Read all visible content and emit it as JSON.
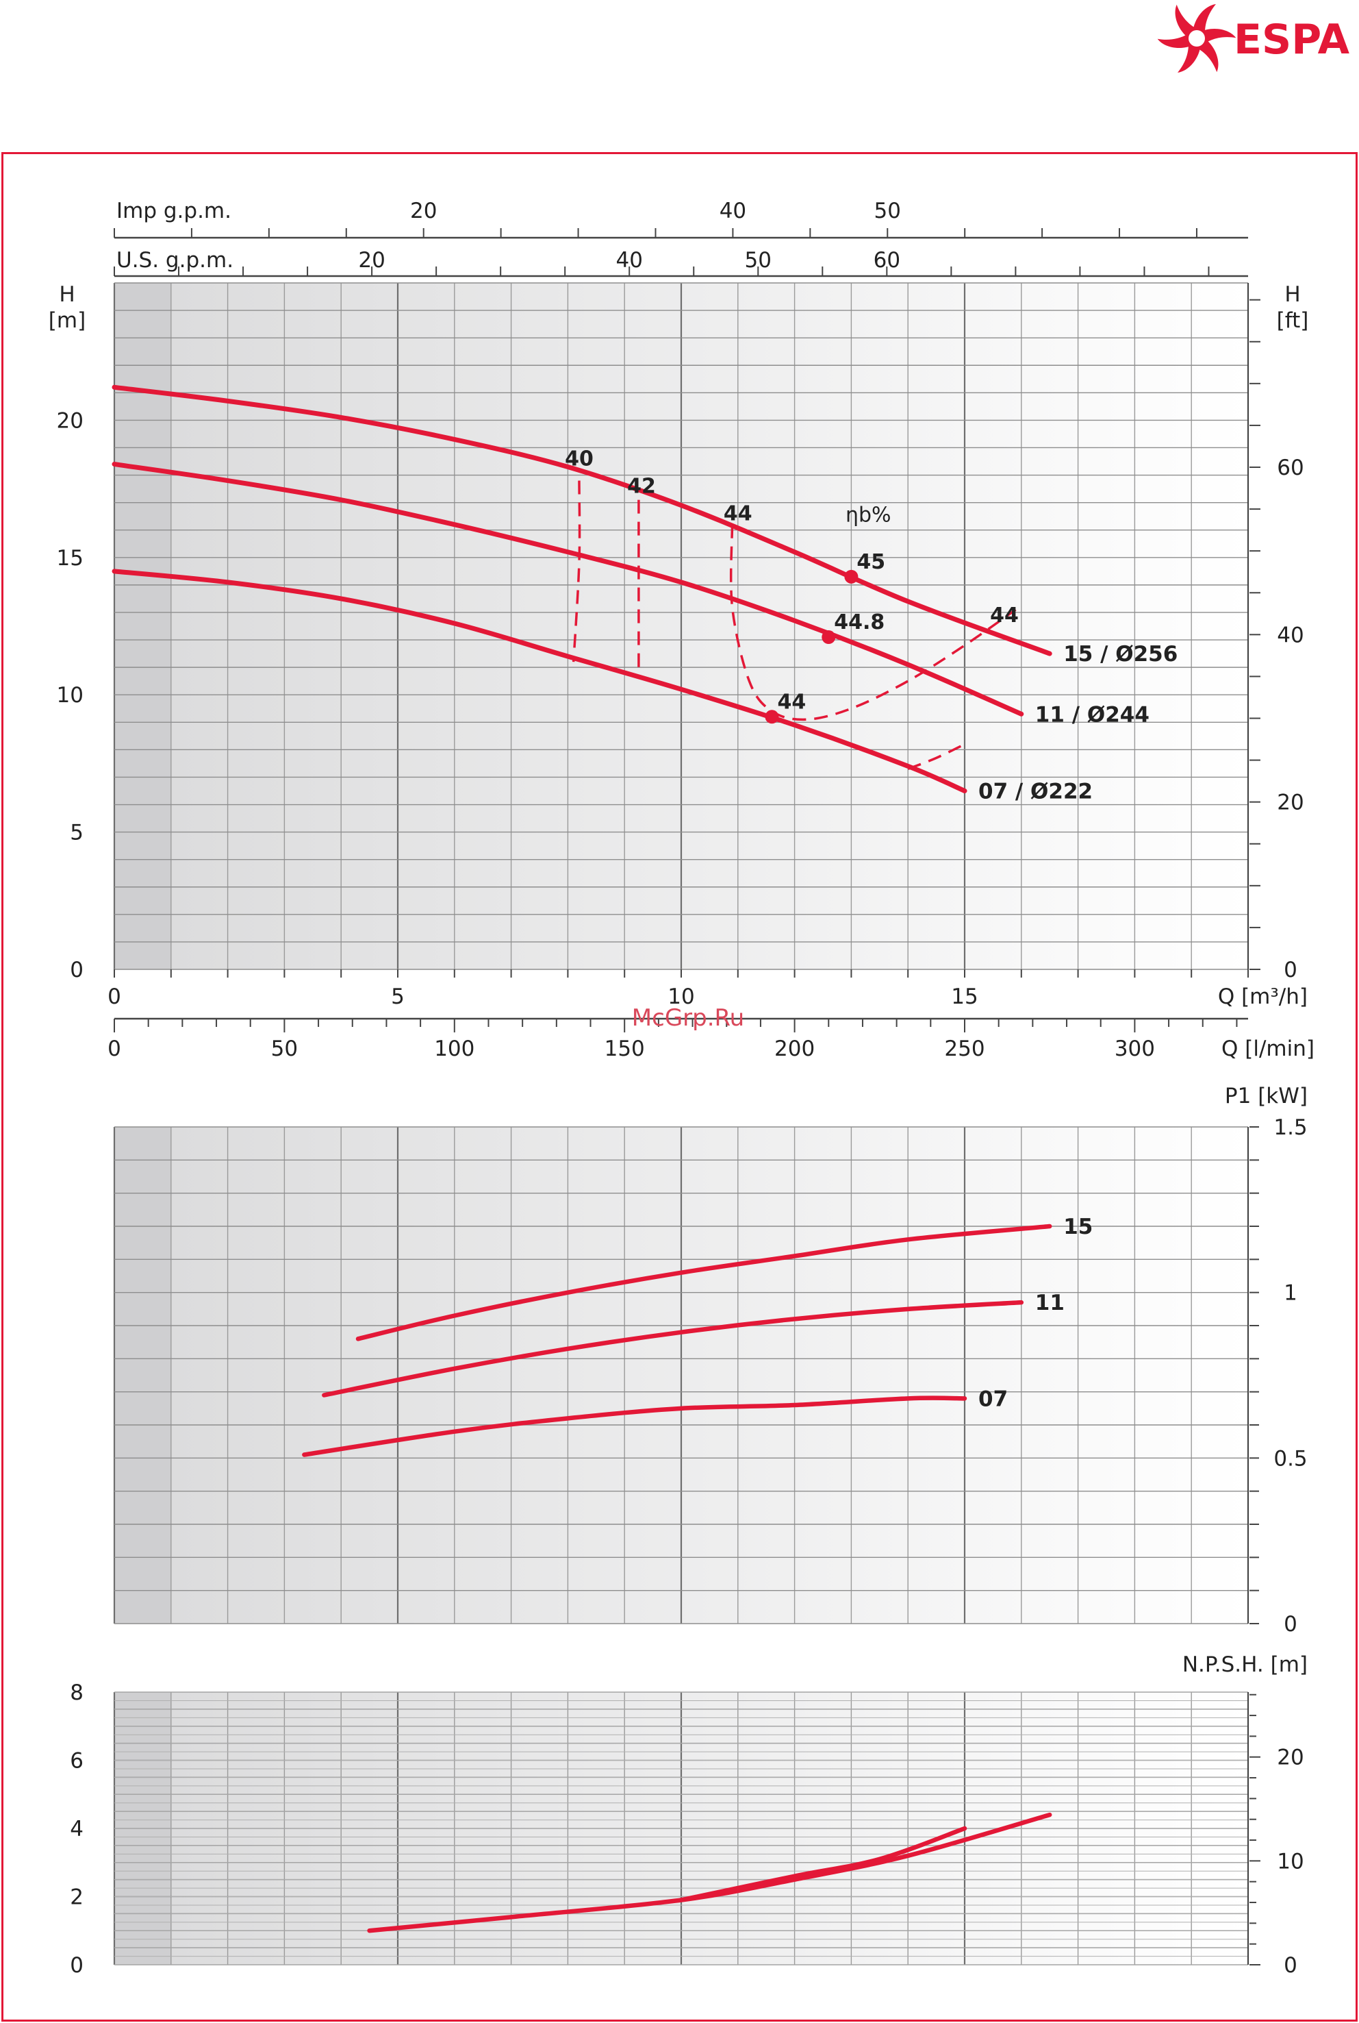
{
  "brand": {
    "name": "ESPA",
    "color": "#e31837"
  },
  "watermark": "McGrp.Ru",
  "colors": {
    "curve": "#e31837",
    "frame": "#e31837",
    "grid": "#8a8a8a",
    "axis": "#444444",
    "text": "#222222"
  },
  "chart_data": [
    {
      "type": "line",
      "panel": "head",
      "x_unit": "Q [m³/h]",
      "xlim": [
        0,
        20
      ],
      "xticks": [
        0,
        5,
        10,
        15
      ],
      "x_lmin_ticks": [
        0,
        50,
        100,
        150,
        200,
        250,
        300
      ],
      "x_lmin_label": "Q [l/min]",
      "x_usgpm_label": "U.S. g.p.m.",
      "x_usgpm_ticks": [
        20,
        40,
        50,
        60
      ],
      "x_impgpm_label": "Imp g.p.m.",
      "x_impgpm_ticks": [
        20,
        40,
        50
      ],
      "ylabel_left": [
        "H",
        "[m]"
      ],
      "ylim": [
        0,
        25
      ],
      "yticks": [
        0,
        5,
        10,
        15,
        20
      ],
      "ylabel_right": [
        "H",
        "[ft]"
      ],
      "yticks_right": [
        0,
        20,
        40,
        60
      ],
      "efficiency_label": "ηb%",
      "series": [
        {
          "name": "15 / Ø256",
          "x": [
            0,
            2,
            4,
            6,
            8,
            10,
            12,
            14,
            16.5
          ],
          "y": [
            21.2,
            20.7,
            20.1,
            19.3,
            18.3,
            16.9,
            15.2,
            13.4,
            11.5
          ]
        },
        {
          "name": "11 / Ø244",
          "x": [
            0,
            2,
            4,
            6,
            8,
            10,
            12,
            14,
            16
          ],
          "y": [
            18.4,
            17.8,
            17.1,
            16.2,
            15.2,
            14.1,
            12.7,
            11.1,
            9.3
          ]
        },
        {
          "name": "07 / Ø222",
          "x": [
            0,
            2,
            4,
            6,
            8,
            10,
            12,
            14,
            15
          ],
          "y": [
            14.5,
            14.1,
            13.5,
            12.6,
            11.4,
            10.2,
            8.9,
            7.4,
            6.5
          ]
        }
      ],
      "efficiency_points": [
        {
          "label": "45",
          "x": 13,
          "y": 14.3
        },
        {
          "label": "44.8",
          "x": 12.6,
          "y": 12.1
        },
        {
          "label": "44",
          "x": 11.6,
          "y": 9.2
        }
      ],
      "efficiency_labels": [
        {
          "label": "40",
          "x": 8.2,
          "y": 18.6
        },
        {
          "label": "42",
          "x": 9.3,
          "y": 17.6
        },
        {
          "label": "44",
          "x": 11,
          "y": 16.6
        },
        {
          "label": "44",
          "x": 15.7,
          "y": 12.9
        }
      ],
      "efficiency_curves": [
        {
          "x": [
            8.2,
            8.2,
            8.1
          ],
          "y": [
            17.8,
            14.8,
            11.2
          ]
        },
        {
          "x": [
            9.25,
            9.25,
            9.25
          ],
          "y": [
            17.1,
            14.2,
            10.6
          ]
        },
        {
          "x": [
            10.9,
            10.9,
            11.2,
            11.6,
            12.2,
            13,
            14,
            15,
            15.9
          ],
          "y": [
            16.2,
            13.2,
            10.5,
            9.4,
            9.1,
            9.5,
            10.5,
            11.8,
            13.1
          ]
        },
        {
          "x": [
            14,
            14.5,
            15
          ],
          "y": [
            7.3,
            7.7,
            8.2
          ]
        }
      ]
    },
    {
      "type": "line",
      "panel": "power",
      "ylabel": "P1 [kW]",
      "xlim": [
        0,
        20
      ],
      "ylim": [
        0,
        1.5
      ],
      "yticks": [
        0,
        0.5,
        1,
        1.5
      ],
      "ytick_labels": [
        "0",
        "0.5",
        "1",
        "1.5"
      ],
      "series": [
        {
          "name": "15",
          "x": [
            4.3,
            6,
            8,
            10,
            12,
            14,
            16.5
          ],
          "y": [
            0.86,
            0.93,
            1.0,
            1.06,
            1.11,
            1.16,
            1.2
          ]
        },
        {
          "name": "11",
          "x": [
            3.7,
            6,
            8,
            10,
            12,
            14,
            16
          ],
          "y": [
            0.69,
            0.77,
            0.83,
            0.88,
            0.92,
            0.95,
            0.97
          ]
        },
        {
          "name": "07",
          "x": [
            3.35,
            6,
            8,
            10,
            12,
            14,
            15
          ],
          "y": [
            0.51,
            0.58,
            0.62,
            0.65,
            0.66,
            0.68,
            0.68
          ]
        }
      ]
    },
    {
      "type": "line",
      "panel": "npsh",
      "ylabel": "N.P.S.H. [m]",
      "xlim": [
        0,
        20
      ],
      "ylim": [
        0,
        8
      ],
      "yticks": [
        0,
        2,
        4,
        6,
        8
      ],
      "yticks_right": [
        0,
        10,
        20
      ],
      "series": [
        {
          "x": [
            4.5,
            7,
            10,
            12,
            14,
            16.5
          ],
          "y": [
            1.0,
            1.4,
            1.9,
            2.5,
            3.2,
            4.4
          ]
        },
        {
          "x": [
            10,
            12,
            13.5,
            15
          ],
          "y": [
            1.9,
            2.6,
            3.1,
            4.0
          ]
        }
      ]
    }
  ]
}
